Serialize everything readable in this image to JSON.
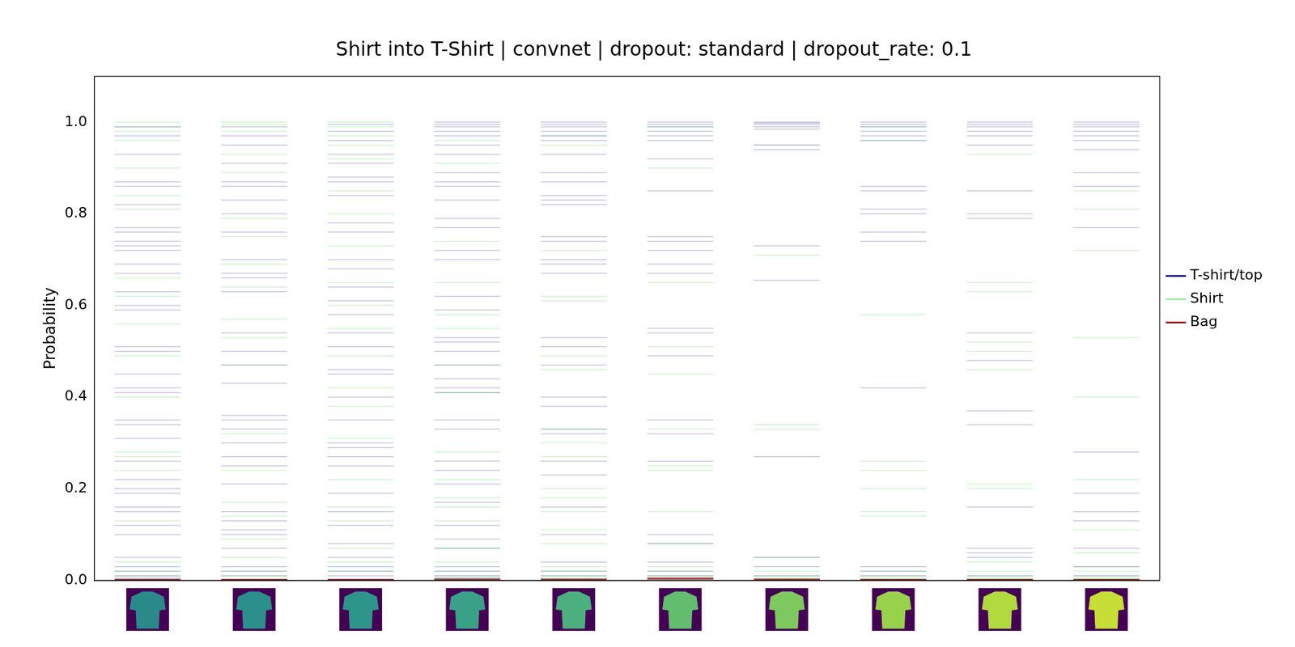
{
  "chart_data": {
    "type": "strip",
    "title": "Shirt into T-Shirt | convnet | dropout: standard | dropout_rate: 0.1",
    "y_label": "Probability",
    "categories": [
      null,
      null,
      null,
      null,
      null,
      null,
      null,
      null,
      null,
      null
    ],
    "ylim": [
      0,
      1.1
    ],
    "yticks": [
      {
        "value": 0,
        "label": "0.0"
      },
      {
        "value": 0.2,
        "label": "0.2"
      },
      {
        "value": 0.4,
        "label": "0.4"
      },
      {
        "value": 0.6,
        "label": "0.6"
      },
      {
        "value": 0.8,
        "label": "0.8"
      },
      {
        "value": 1,
        "label": "1.0"
      }
    ],
    "grid": false,
    "legend": "right",
    "tick_labels": "y",
    "marker": "line",
    "series": [
      {
        "name": "T-shirt/top",
        "color": "#000080",
        "values": [
          [
            0.99,
            0.97,
            0.93,
            0.87,
            0.86,
            0.82,
            0.77,
            0.76,
            0.74,
            0.73,
            0.72,
            0.69,
            0.67,
            0.63,
            0.6,
            0.59,
            0.51,
            0.5,
            0.45,
            0.42,
            0.41,
            0.35,
            0.34,
            0.31,
            0.26,
            0.22,
            0.2,
            0.19,
            0.16,
            0.15,
            0.12,
            0.1,
            0.05,
            0.03,
            0.02,
            0.01,
            0.005
          ],
          [
            0.99,
            0.97,
            0.95,
            0.91,
            0.87,
            0.86,
            0.83,
            0.8,
            0.76,
            0.7,
            0.67,
            0.66,
            0.63,
            0.54,
            0.5,
            0.47,
            0.43,
            0.36,
            0.35,
            0.33,
            0.3,
            0.27,
            0.25,
            0.21,
            0.15,
            0.13,
            0.11,
            0.1,
            0.07,
            0.03,
            0.02,
            0.01
          ],
          [
            0.995,
            0.98,
            0.96,
            0.93,
            0.91,
            0.88,
            0.87,
            0.84,
            0.78,
            0.76,
            0.7,
            0.68,
            0.64,
            0.61,
            0.58,
            0.54,
            0.51,
            0.46,
            0.45,
            0.4,
            0.35,
            0.3,
            0.29,
            0.27,
            0.25,
            0.19,
            0.15,
            0.12,
            0.08,
            0.05,
            0.03,
            0.02,
            0.01
          ],
          [
            1.0,
            0.995,
            0.99,
            0.98,
            0.97,
            0.95,
            0.93,
            0.89,
            0.87,
            0.86,
            0.83,
            0.79,
            0.77,
            0.72,
            0.7,
            0.62,
            0.59,
            0.53,
            0.52,
            0.5,
            0.47,
            0.44,
            0.42,
            0.41,
            0.35,
            0.33,
            0.26,
            0.24,
            0.21,
            0.17,
            0.12,
            0.09,
            0.07,
            0.03,
            0.02,
            0.01,
            0.005
          ],
          [
            1.0,
            0.995,
            0.99,
            0.98,
            0.97,
            0.96,
            0.93,
            0.89,
            0.87,
            0.84,
            0.83,
            0.82,
            0.75,
            0.74,
            0.7,
            0.69,
            0.67,
            0.53,
            0.51,
            0.47,
            0.4,
            0.38,
            0.33,
            0.32,
            0.26,
            0.23,
            0.16,
            0.1,
            0.04,
            0.02,
            0.01
          ],
          [
            1.0,
            0.995,
            0.99,
            0.98,
            0.97,
            0.96,
            0.92,
            0.85,
            0.75,
            0.74,
            0.72,
            0.69,
            0.67,
            0.55,
            0.54,
            0.49,
            0.35,
            0.32,
            0.26,
            0.1,
            0.08,
            0.04,
            0.02,
            0.01
          ],
          [
            1.0,
            0.998,
            0.995,
            0.99,
            0.985,
            0.95,
            0.94,
            0.73,
            0.655,
            0.27,
            0.05,
            0.03,
            0.01
          ],
          [
            1.0,
            0.995,
            0.99,
            0.98,
            0.97,
            0.96,
            0.86,
            0.85,
            0.81,
            0.8,
            0.76,
            0.74,
            0.42,
            0.03,
            0.02,
            0.01
          ],
          [
            1.0,
            0.995,
            0.99,
            0.98,
            0.97,
            0.95,
            0.85,
            0.8,
            0.79,
            0.54,
            0.48,
            0.37,
            0.34,
            0.16,
            0.07,
            0.06,
            0.05,
            0.01
          ],
          [
            1.0,
            0.995,
            0.99,
            0.98,
            0.97,
            0.96,
            0.94,
            0.89,
            0.86,
            0.77,
            0.28,
            0.19,
            0.15,
            0.13,
            0.07,
            0.03,
            0.01
          ]
        ]
      },
      {
        "name": "Shirt",
        "color": "#90ee90",
        "values": [
          [
            1.0,
            0.99,
            0.98,
            0.96,
            0.9,
            0.84,
            0.81,
            0.66,
            0.62,
            0.56,
            0.49,
            0.4,
            0.28,
            0.27,
            0.24,
            0.13,
            0.04,
            0.02,
            0.01
          ],
          [
            1.0,
            0.995,
            0.98,
            0.93,
            0.89,
            0.79,
            0.75,
            0.69,
            0.64,
            0.57,
            0.53,
            0.47,
            0.32,
            0.24,
            0.17,
            0.14,
            0.09,
            0.05,
            0.02,
            0.01
          ],
          [
            1.0,
            0.99,
            0.97,
            0.95,
            0.92,
            0.85,
            0.8,
            0.73,
            0.65,
            0.6,
            0.55,
            0.49,
            0.42,
            0.38,
            0.31,
            0.22,
            0.16,
            0.13,
            0.07,
            0.04,
            0.02
          ],
          [
            0.96,
            0.91,
            0.74,
            0.65,
            0.58,
            0.55,
            0.47,
            0.41,
            0.28,
            0.22,
            0.18,
            0.16,
            0.13,
            0.07,
            0.04,
            0.02,
            0.01,
            0.005
          ],
          [
            0.97,
            0.95,
            0.72,
            0.62,
            0.61,
            0.49,
            0.46,
            0.33,
            0.3,
            0.27,
            0.2,
            0.18,
            0.15,
            0.11,
            0.08,
            0.03,
            0.02,
            0.01,
            0.005
          ],
          [
            0.99,
            0.9,
            0.65,
            0.51,
            0.45,
            0.33,
            0.25,
            0.24,
            0.15,
            0.08,
            0.03,
            0.02,
            0.01
          ],
          [
            0.95,
            0.71,
            0.34,
            0.33,
            0.05,
            0.02,
            0.01,
            0.005
          ],
          [
            0.99,
            0.96,
            0.58,
            0.26,
            0.24,
            0.2,
            0.15,
            0.14,
            0.02,
            0.01,
            0.005
          ],
          [
            0.93,
            0.65,
            0.63,
            0.52,
            0.5,
            0.46,
            0.21,
            0.2,
            0.04,
            0.02,
            0.01,
            0.005
          ],
          [
            0.85,
            0.81,
            0.72,
            0.53,
            0.4,
            0.22,
            0.11,
            0.06,
            0.03,
            0.02,
            0.01,
            0.005
          ]
        ]
      },
      {
        "name": "Bag",
        "color": "#8b0000",
        "values": [
          [
            0.002,
            0.001
          ],
          [
            0.002,
            0.001
          ],
          [
            0.002,
            0.001
          ],
          [
            0.003,
            0.001
          ],
          [
            0.003,
            0.001
          ],
          [
            0.005,
            0.003
          ],
          [
            0.003,
            0.001
          ],
          [
            0.002,
            0.001
          ],
          [
            0.002,
            0.001
          ],
          [
            0.002,
            0.001
          ]
        ]
      }
    ]
  }
}
